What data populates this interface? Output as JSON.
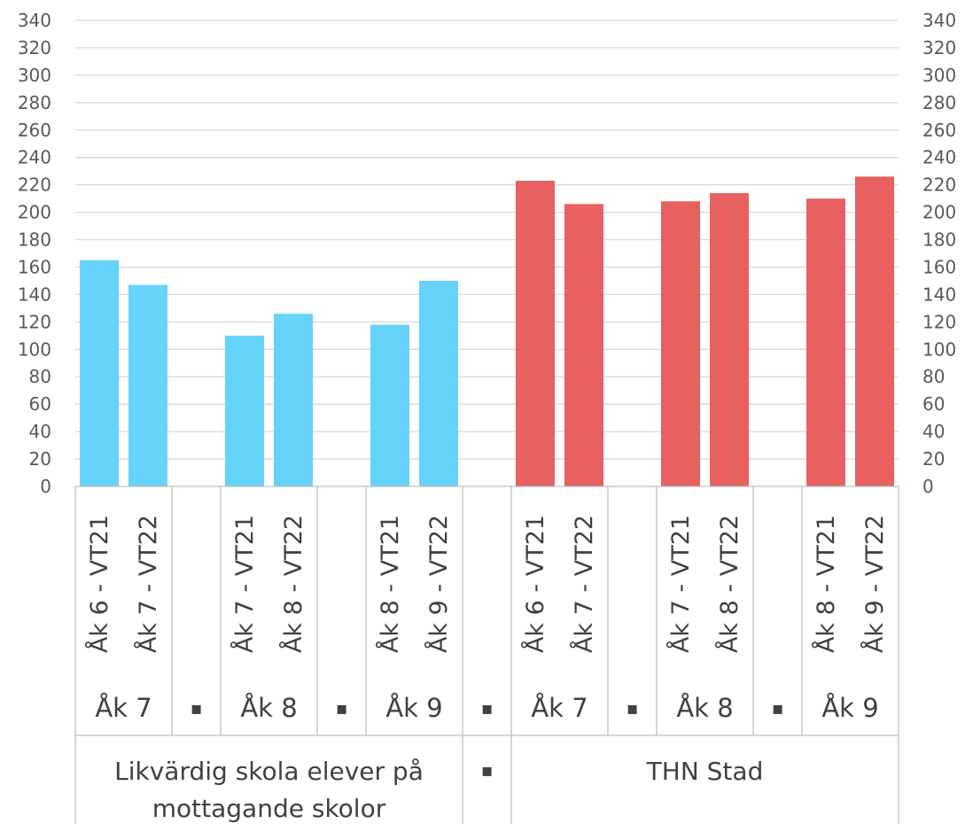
{
  "chart_data": {
    "type": "bar",
    "title": "",
    "xlabel": "",
    "ylabel": "",
    "ylim": [
      0,
      340
    ],
    "y_ticks": [
      0,
      20,
      40,
      60,
      80,
      100,
      120,
      140,
      160,
      180,
      200,
      220,
      240,
      260,
      280,
      300,
      320,
      340
    ],
    "grid": true,
    "secondary_y_axis": true,
    "separator_glyph": "▪",
    "top_groups": [
      {
        "label": "Likvärdig skola elever på mottagande skolor",
        "label_lines": [
          "Likvärdig skola elever på",
          "mottagande skolor"
        ],
        "color": "#66D3FA",
        "subgroups": [
          {
            "label": "Åk 7",
            "bars": [
              {
                "label": "Åk 6 - VT21",
                "value": 165
              },
              {
                "label": "Åk 7 - VT22",
                "value": 147
              }
            ]
          },
          {
            "label": "Åk 8",
            "bars": [
              {
                "label": "Åk 7 - VT21",
                "value": 110
              },
              {
                "label": "Åk 8 - VT22",
                "value": 126
              }
            ]
          },
          {
            "label": "Åk 9",
            "bars": [
              {
                "label": "Åk 8 - VT21",
                "value": 118
              },
              {
                "label": "Åk 9 - VT22",
                "value": 150
              }
            ]
          }
        ]
      },
      {
        "label": "THN Stad",
        "label_lines": [
          "THN Stad"
        ],
        "color": "#E8605F",
        "subgroups": [
          {
            "label": "Åk 7",
            "bars": [
              {
                "label": "Åk 6 - VT21",
                "value": 223
              },
              {
                "label": "Åk 7 - VT22",
                "value": 206
              }
            ]
          },
          {
            "label": "Åk 8",
            "bars": [
              {
                "label": "Åk 7 - VT21",
                "value": 208
              },
              {
                "label": "Åk 8 - VT22",
                "value": 214
              }
            ]
          },
          {
            "label": "Åk 9",
            "bars": [
              {
                "label": "Åk 8 - VT21",
                "value": 210
              },
              {
                "label": "Åk 9 - VT22",
                "value": 226
              }
            ]
          }
        ]
      }
    ]
  }
}
